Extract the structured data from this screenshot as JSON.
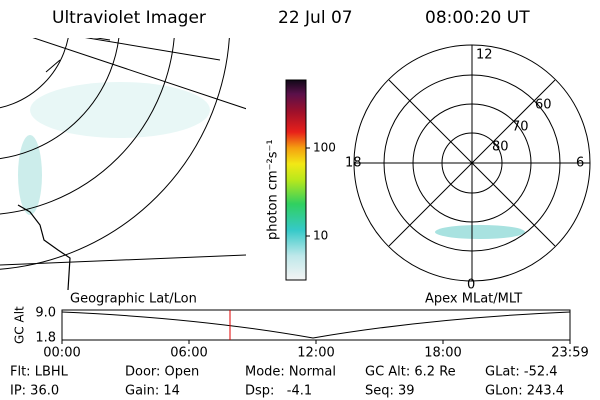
{
  "header": {
    "title": "Ultraviolet Imager",
    "date": "22 Jul 07",
    "time": "08:00:20 UT"
  },
  "colorbar": {
    "label": "photon cm⁻²s⁻¹",
    "ticks": [
      "100",
      "10"
    ]
  },
  "polar": {
    "mlt": [
      "12",
      "18",
      "6",
      "0"
    ],
    "lat": [
      "60",
      "70",
      "80"
    ]
  },
  "orbit": {
    "left_label": "Geographic Lat/Lon",
    "right_label": "Apex MLat/MLT",
    "y_label": "GC Alt",
    "yticks": [
      "9.0",
      "1.8"
    ],
    "xticks": [
      "00:00",
      "06:00",
      "12:00",
      "18:00",
      "23:59"
    ]
  },
  "status": {
    "rows": [
      [
        "Flt: LBHL",
        "Door: Open",
        "Mode: Normal",
        "GC Alt: 6.2 Re",
        "GLat: -52.4"
      ],
      [
        "IP: 36.0",
        "Gain: 14",
        "Dsp:   -4.1",
        "Seq: 39",
        "GLon: 243.4"
      ]
    ]
  }
}
